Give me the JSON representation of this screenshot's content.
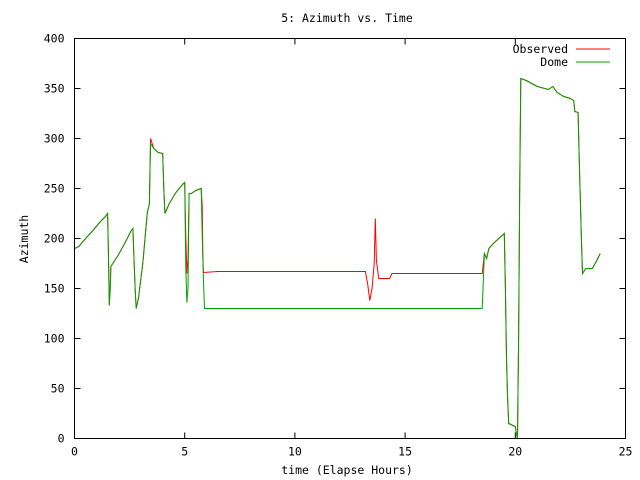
{
  "chart_data": {
    "type": "line",
    "title": "5: Azimuth vs. Time",
    "xlabel": "time (Elapse Hours)",
    "ylabel": "Azimuth",
    "xlim": [
      0,
      25
    ],
    "ylim": [
      0,
      400
    ],
    "xticks": [
      0,
      5,
      10,
      15,
      20,
      25
    ],
    "yticks": [
      0,
      50,
      100,
      150,
      200,
      250,
      300,
      350,
      400
    ],
    "grid": false,
    "legend_position": "top-right",
    "series": [
      {
        "name": "Observed",
        "color": "#ff0000",
        "points": [
          [
            0.0,
            190
          ],
          [
            0.2,
            192
          ],
          [
            0.5,
            200
          ],
          [
            0.8,
            207
          ],
          [
            1.1,
            215
          ],
          [
            1.4,
            222
          ],
          [
            1.5,
            225
          ],
          [
            1.55,
            170
          ],
          [
            1.58,
            133
          ],
          [
            1.62,
            150
          ],
          [
            1.65,
            172
          ],
          [
            2.0,
            184
          ],
          [
            2.3,
            196
          ],
          [
            2.55,
            207
          ],
          [
            2.65,
            210
          ],
          [
            2.75,
            150
          ],
          [
            2.8,
            130
          ],
          [
            2.9,
            140
          ],
          [
            3.1,
            175
          ],
          [
            3.3,
            225
          ],
          [
            3.4,
            235
          ],
          [
            3.45,
            300
          ],
          [
            3.6,
            290
          ],
          [
            3.8,
            286
          ],
          [
            4.0,
            285
          ],
          [
            4.05,
            250
          ],
          [
            4.1,
            225
          ],
          [
            4.3,
            235
          ],
          [
            4.6,
            246
          ],
          [
            4.9,
            254
          ],
          [
            5.0,
            256
          ],
          [
            5.05,
            200
          ],
          [
            5.1,
            165
          ],
          [
            5.15,
            180
          ],
          [
            5.2,
            245
          ],
          [
            5.3,
            245
          ],
          [
            5.5,
            248
          ],
          [
            5.75,
            250
          ],
          [
            5.8,
            230
          ],
          [
            5.82,
            185
          ],
          [
            5.85,
            166
          ],
          [
            6.5,
            167
          ],
          [
            8.0,
            167
          ],
          [
            10.0,
            167
          ],
          [
            12.0,
            167
          ],
          [
            13.2,
            167
          ],
          [
            13.3,
            155
          ],
          [
            13.4,
            138
          ],
          [
            13.5,
            150
          ],
          [
            13.6,
            175
          ],
          [
            13.65,
            220
          ],
          [
            13.7,
            178
          ],
          [
            13.8,
            160
          ],
          [
            14.3,
            160
          ],
          [
            14.4,
            165
          ],
          [
            16.0,
            165
          ],
          [
            18.0,
            165
          ],
          [
            18.5,
            165
          ],
          [
            18.6,
            185
          ],
          [
            18.7,
            180
          ],
          [
            18.8,
            190
          ],
          [
            19.0,
            195
          ],
          [
            19.5,
            205
          ],
          [
            19.55,
            150
          ],
          [
            19.6,
            80
          ],
          [
            19.65,
            40
          ],
          [
            19.7,
            15
          ],
          [
            20.0,
            12
          ],
          [
            20.05,
            5
          ],
          [
            20.1,
            0
          ],
          [
            20.15,
            100
          ],
          [
            20.2,
            250
          ],
          [
            20.25,
            360
          ],
          [
            20.5,
            358
          ],
          [
            21.0,
            352
          ],
          [
            21.5,
            349
          ],
          [
            21.7,
            352
          ],
          [
            21.9,
            346
          ],
          [
            22.2,
            342
          ],
          [
            22.5,
            340
          ],
          [
            22.65,
            338
          ],
          [
            22.7,
            327
          ],
          [
            22.85,
            326
          ],
          [
            22.9,
            280
          ],
          [
            23.0,
            200
          ],
          [
            23.05,
            165
          ],
          [
            23.2,
            170
          ],
          [
            23.5,
            170
          ],
          [
            23.7,
            178
          ],
          [
            23.85,
            185
          ]
        ]
      },
      {
        "name": "Dome",
        "color": "#00a000",
        "points": [
          [
            0.0,
            190
          ],
          [
            0.2,
            192
          ],
          [
            0.5,
            200
          ],
          [
            0.8,
            207
          ],
          [
            1.1,
            215
          ],
          [
            1.4,
            222
          ],
          [
            1.5,
            225
          ],
          [
            1.55,
            170
          ],
          [
            1.58,
            133
          ],
          [
            1.62,
            150
          ],
          [
            1.65,
            172
          ],
          [
            2.0,
            184
          ],
          [
            2.3,
            196
          ],
          [
            2.55,
            207
          ],
          [
            2.65,
            210
          ],
          [
            2.75,
            150
          ],
          [
            2.8,
            130
          ],
          [
            2.9,
            140
          ],
          [
            3.1,
            175
          ],
          [
            3.3,
            225
          ],
          [
            3.4,
            235
          ],
          [
            3.45,
            295
          ],
          [
            3.6,
            290
          ],
          [
            3.8,
            286
          ],
          [
            4.0,
            285
          ],
          [
            4.05,
            250
          ],
          [
            4.1,
            225
          ],
          [
            4.3,
            235
          ],
          [
            4.6,
            246
          ],
          [
            4.9,
            254
          ],
          [
            5.0,
            256
          ],
          [
            5.05,
            170
          ],
          [
            5.1,
            136
          ],
          [
            5.15,
            150
          ],
          [
            5.2,
            245
          ],
          [
            5.3,
            245
          ],
          [
            5.5,
            248
          ],
          [
            5.75,
            250
          ],
          [
            5.8,
            200
          ],
          [
            5.85,
            160
          ],
          [
            5.9,
            130
          ],
          [
            8.0,
            130
          ],
          [
            10.0,
            130
          ],
          [
            13.0,
            130
          ],
          [
            15.0,
            130
          ],
          [
            17.0,
            130
          ],
          [
            18.5,
            130
          ],
          [
            18.6,
            185
          ],
          [
            18.7,
            180
          ],
          [
            18.8,
            190
          ],
          [
            19.0,
            195
          ],
          [
            19.5,
            205
          ],
          [
            19.55,
            150
          ],
          [
            19.6,
            80
          ],
          [
            19.65,
            40
          ],
          [
            19.7,
            15
          ],
          [
            20.0,
            12
          ],
          [
            20.05,
            5
          ],
          [
            20.1,
            0
          ],
          [
            20.15,
            100
          ],
          [
            20.2,
            250
          ],
          [
            20.25,
            360
          ],
          [
            20.5,
            358
          ],
          [
            21.0,
            352
          ],
          [
            21.5,
            349
          ],
          [
            21.7,
            352
          ],
          [
            21.9,
            346
          ],
          [
            22.2,
            342
          ],
          [
            22.5,
            340
          ],
          [
            22.65,
            338
          ],
          [
            22.7,
            327
          ],
          [
            22.85,
            326
          ],
          [
            22.9,
            280
          ],
          [
            23.0,
            200
          ],
          [
            23.05,
            165
          ],
          [
            23.2,
            170
          ],
          [
            23.5,
            170
          ],
          [
            23.7,
            178
          ],
          [
            23.85,
            185
          ]
        ]
      }
    ]
  }
}
